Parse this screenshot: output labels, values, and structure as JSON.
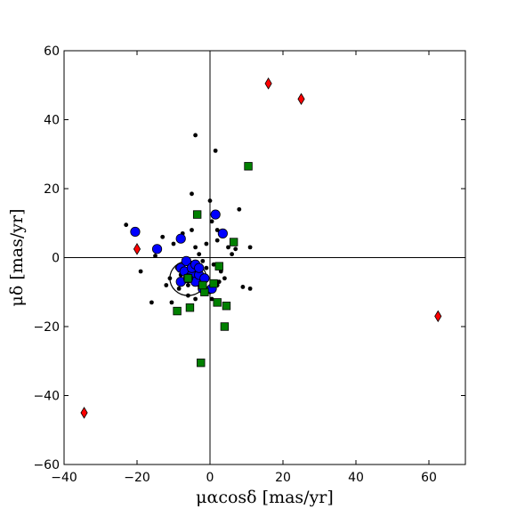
{
  "chart_data": {
    "type": "scatter",
    "xlabel": "μαcosδ [mas/yr]",
    "ylabel": "μδ [mas/yr]",
    "xlim": [
      -40,
      70
    ],
    "ylim": [
      -60,
      60
    ],
    "xticks": [
      "−40",
      "−20",
      "0",
      "20",
      "40",
      "60"
    ],
    "yticks": [
      "−60",
      "−40",
      "−20",
      "0",
      "20",
      "40",
      "60"
    ],
    "xtick_values": [
      -40,
      -20,
      0,
      20,
      40,
      60
    ],
    "ytick_values": [
      -60,
      -40,
      -20,
      0,
      20,
      40,
      60
    ],
    "reference_lines": {
      "x": 0,
      "y": 0
    },
    "circle": {
      "center": [
        -6,
        -6
      ],
      "radius": 5
    },
    "grid": false,
    "series": [
      {
        "marker": "dot",
        "color": "#000000",
        "points": [
          [
            -23,
            9.5
          ],
          [
            -19,
            -4
          ],
          [
            -16,
            -13
          ],
          [
            -15,
            0.5
          ],
          [
            -14,
            2.5
          ],
          [
            -13,
            6
          ],
          [
            -12,
            -8
          ],
          [
            -11,
            -6
          ],
          [
            -10.5,
            -13
          ],
          [
            -10,
            4
          ],
          [
            -9,
            -3
          ],
          [
            -8.5,
            -9
          ],
          [
            -7.5,
            7
          ],
          [
            -6,
            -11
          ],
          [
            -5,
            18.5
          ],
          [
            -5,
            8
          ],
          [
            -4,
            35.5
          ],
          [
            -4,
            3
          ],
          [
            -4,
            -2
          ],
          [
            -3,
            -8
          ],
          [
            -3,
            1
          ],
          [
            -2.5,
            -5
          ],
          [
            -2,
            -9
          ],
          [
            -1,
            -3
          ],
          [
            -1,
            4
          ],
          [
            0,
            16.5
          ],
          [
            0.5,
            10.5
          ],
          [
            0.5,
            -12
          ],
          [
            1,
            -2
          ],
          [
            1.5,
            31
          ],
          [
            2,
            8
          ],
          [
            2,
            5
          ],
          [
            2.5,
            -7
          ],
          [
            3,
            -4
          ],
          [
            4,
            -6
          ],
          [
            5,
            3
          ],
          [
            6,
            1
          ],
          [
            7,
            2.5
          ],
          [
            8,
            14
          ],
          [
            9,
            -8.5
          ],
          [
            11,
            -9
          ],
          [
            11,
            3
          ],
          [
            -6,
            -2
          ],
          [
            -7,
            -7
          ],
          [
            -5,
            -6
          ],
          [
            -2,
            -1
          ],
          [
            -1,
            -6
          ],
          [
            0,
            -10
          ],
          [
            -8,
            -5
          ],
          [
            -6,
            -8
          ],
          [
            -4,
            -12
          ],
          [
            2,
            -8
          ],
          [
            -3,
            13
          ]
        ]
      },
      {
        "marker": "circle",
        "color": "#0000ff",
        "points": [
          [
            -20.5,
            7.5
          ],
          [
            -14.5,
            2.5
          ],
          [
            -8,
            5.5
          ],
          [
            1.5,
            12.5
          ],
          [
            3.5,
            7
          ],
          [
            -8,
            -7
          ],
          [
            -8,
            -3
          ],
          [
            -7,
            -4
          ],
          [
            -6.5,
            -1
          ],
          [
            -5,
            -5
          ],
          [
            -5,
            -3
          ],
          [
            -4,
            -7
          ],
          [
            -4,
            -2
          ],
          [
            -3,
            -5
          ],
          [
            -2,
            -9
          ],
          [
            -1.5,
            -6
          ],
          [
            -6,
            -6
          ],
          [
            -3,
            -3
          ],
          [
            0.5,
            -9
          ]
        ]
      },
      {
        "marker": "square",
        "color": "#008000",
        "points": [
          [
            10.5,
            26.5
          ],
          [
            -3.5,
            12.5
          ],
          [
            6.5,
            4.5
          ],
          [
            2.5,
            -2.5
          ],
          [
            1,
            -7.5
          ],
          [
            -1.5,
            -10
          ],
          [
            -2,
            -8
          ],
          [
            2,
            -13
          ],
          [
            4.5,
            -14
          ],
          [
            -5.5,
            -14.5
          ],
          [
            -9,
            -15.5
          ],
          [
            4,
            -20
          ],
          [
            -2.5,
            -30.5
          ],
          [
            -6,
            -6
          ]
        ]
      },
      {
        "marker": "diamond",
        "color": "#ff0000",
        "points": [
          [
            16,
            50.5
          ],
          [
            25,
            46
          ],
          [
            -20,
            2.5
          ],
          [
            62.5,
            -17
          ],
          [
            -34.5,
            -45
          ]
        ]
      }
    ]
  }
}
